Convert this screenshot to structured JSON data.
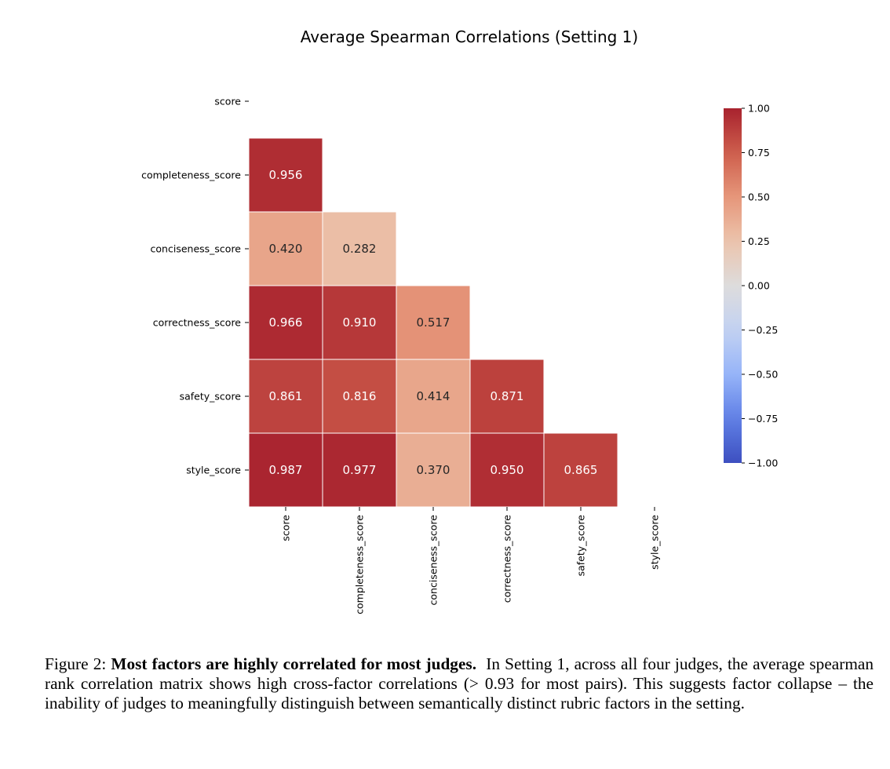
{
  "chart_data": {
    "type": "heatmap",
    "title": "Average Spearman Correlations (Setting 1)",
    "row_labels": [
      "score",
      "completeness_score",
      "conciseness_score",
      "correctness_score",
      "safety_score",
      "style_score"
    ],
    "col_labels": [
      "score",
      "completeness_score",
      "conciseness_score",
      "correctness_score",
      "safety_score",
      "style_score"
    ],
    "matrix": [
      [
        null,
        null,
        null,
        null,
        null,
        null
      ],
      [
        0.956,
        null,
        null,
        null,
        null,
        null
      ],
      [
        0.42,
        0.282,
        null,
        null,
        null,
        null
      ],
      [
        0.966,
        0.91,
        0.517,
        null,
        null,
        null
      ],
      [
        0.861,
        0.816,
        0.414,
        0.871,
        null,
        null
      ],
      [
        0.987,
        0.977,
        0.37,
        0.95,
        0.865,
        null
      ]
    ],
    "mask": "upper triangle including diagonal",
    "colormap": "coolwarm",
    "vmin": -1,
    "vmax": 1,
    "colorbar_ticks": [
      "1.00",
      "0.75",
      "0.50",
      "0.25",
      "0.00",
      "−0.25",
      "−0.50",
      "−0.75",
      "−1.00"
    ],
    "colorbar_tick_values": [
      1,
      0.75,
      0.5,
      0.25,
      0,
      -0.25,
      -0.5,
      -0.75,
      -1
    ],
    "colorbar_placement": "right",
    "cell_border_color": "#ffffff"
  },
  "caption": {
    "label": "Figure 2:",
    "bold": "Most factors are highly correlated for most judges.",
    "text": "In Setting 1, across all four judges, the average spearman rank correlation matrix shows high cross-factor correlations (> 0.93 for most pairs).  This suggests factor collapse – the inability of judges to meaningfully distinguish between semantically distinct rubric factors in the setting."
  }
}
